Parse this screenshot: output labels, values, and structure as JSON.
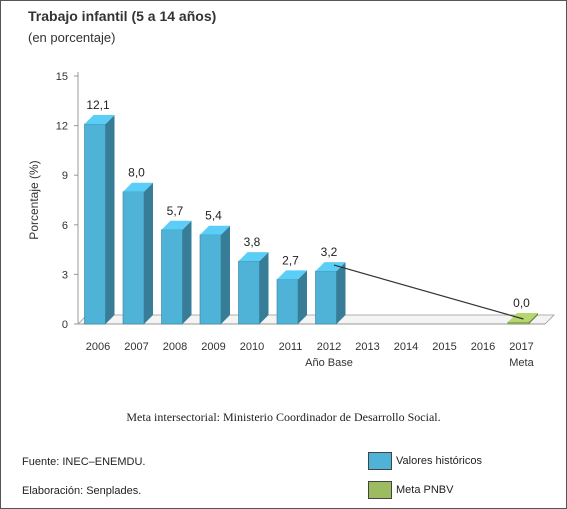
{
  "chart_data": {
    "type": "bar",
    "title": "Trabajo infantil (5 a 14 años)",
    "subtitle": "(en porcentaje)",
    "ylabel": "Porcentaje (%)",
    "ylim": [
      0,
      15
    ],
    "yticks": [
      "0",
      "3",
      "6",
      "9",
      "12",
      "15"
    ],
    "categories": [
      "2006",
      "2007",
      "2008",
      "2009",
      "2010",
      "2011",
      "2012",
      "2013",
      "2014",
      "2015",
      "2016",
      "2017"
    ],
    "sub_labels": {
      "2012": "Año Base",
      "2017": "Meta"
    },
    "series": [
      {
        "name": "Valores históricos",
        "color": "#4fb3d8",
        "values": [
          12.1,
          8.0,
          5.7,
          5.4,
          3.8,
          2.7,
          3.2,
          null,
          null,
          null,
          null,
          null
        ],
        "labels": [
          "12,1",
          "8,0",
          "5,7",
          "5,4",
          "3,8",
          "2,7",
          "3,2",
          "",
          "",
          "",
          "",
          ""
        ]
      },
      {
        "name": "Meta PNBV",
        "color": "#9dbb61",
        "values": [
          null,
          null,
          null,
          null,
          null,
          null,
          null,
          null,
          null,
          null,
          null,
          0.0
        ],
        "labels": [
          "",
          "",
          "",
          "",
          "",
          "",
          "",
          "",
          "",
          "",
          "",
          "0,0"
        ]
      }
    ],
    "trend_line": {
      "from": "2012",
      "to": "2017"
    },
    "grid": false
  },
  "note": "Meta intersectorial: Ministerio Coordinador de Desarrollo Social.",
  "source": "Fuente: INEC–ENEMDU.",
  "elaboration": "Elaboración: Senplades.",
  "legend": [
    {
      "label": "Valores históricos",
      "color": "#4fb3d8"
    },
    {
      "label": "Meta PNBV",
      "color": "#9dbb61"
    }
  ]
}
